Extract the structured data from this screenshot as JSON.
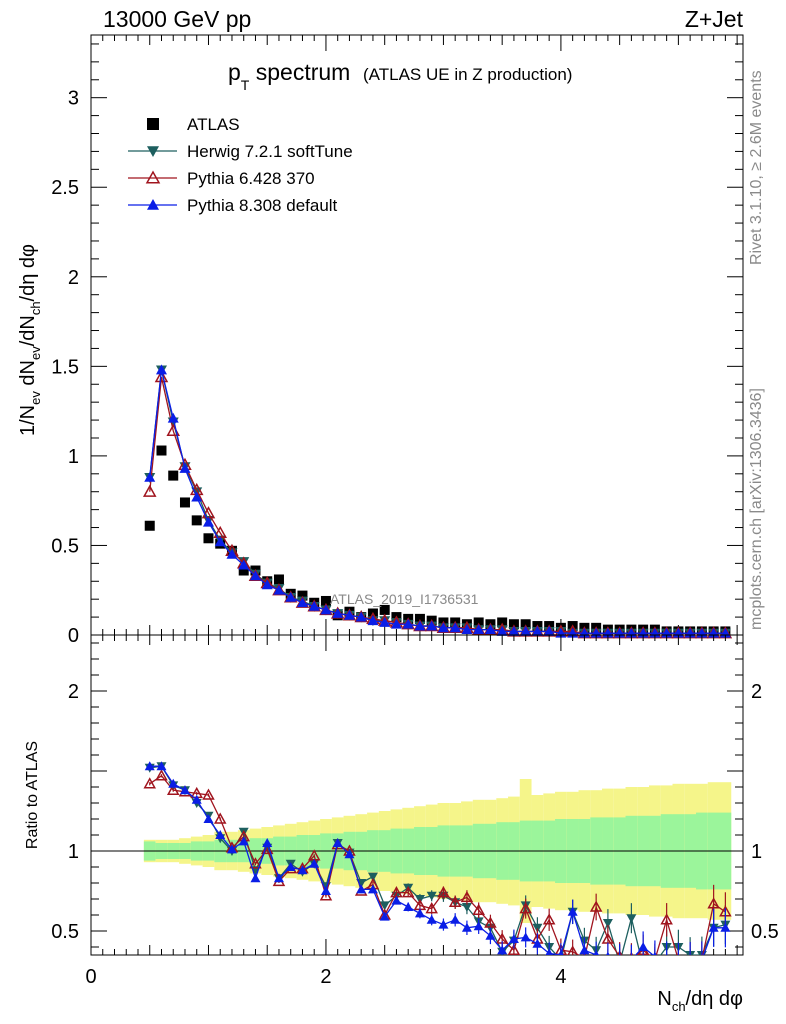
{
  "header": {
    "left": "13000 GeV pp",
    "right": "Z+Jet"
  },
  "title": {
    "main_p": "p",
    "main_sub": "T",
    "main_rest": " spectrum",
    "extra": "(ATLAS UE in Z production)"
  },
  "side_labels": {
    "rivet": "Rivet 3.1.10, ≥ 2.6M events",
    "mcplots": "mcplots.cern.ch [arXiv:1306.3436]"
  },
  "watermark": "ATLAS_2019_I1736531",
  "colors": {
    "atlas": "#000000",
    "herwig": "#1d5f5f",
    "pythia6": "#a0141e",
    "pythia8": "#0a1ee6",
    "band_stat": "#9bf59b",
    "band_tot": "#f5f58a"
  },
  "legend": [
    {
      "key": "atlas",
      "label": "ATLAS"
    },
    {
      "key": "herwig",
      "label": "Herwig 7.2.1 softTune"
    },
    {
      "key": "pythia6",
      "label": "Pythia 6.428 370"
    },
    {
      "key": "pythia8",
      "label": "Pythia 8.308 default"
    }
  ],
  "chart_data": [
    {
      "type": "scatter",
      "name": "main",
      "ylabel": "1/Nev dNev/dNch/dη dφ",
      "ylim": [
        0,
        3.35
      ],
      "xlim": [
        0,
        5.55
      ],
      "yticks": [
        "0",
        "0.5",
        "1",
        "1.5",
        "2",
        "2.5",
        "3"
      ],
      "x": [
        0.5,
        0.6,
        0.7,
        0.8,
        0.9,
        1.0,
        1.1,
        1.2,
        1.3,
        1.4,
        1.5,
        1.6,
        1.7,
        1.8,
        1.9,
        2.0,
        2.1,
        2.2,
        2.3,
        2.4,
        2.5,
        2.6,
        2.7,
        2.8,
        2.9,
        3.0,
        3.1,
        3.2,
        3.3,
        3.4,
        3.5,
        3.6,
        3.7,
        3.8,
        3.9,
        4.0,
        4.1,
        4.2,
        4.3,
        4.4,
        4.5,
        4.6,
        4.7,
        4.8,
        4.9,
        5.0,
        5.1,
        5.2,
        5.3,
        5.4
      ],
      "series": [
        {
          "key": "atlas",
          "values": [
            0.61,
            1.03,
            0.89,
            0.74,
            0.64,
            0.54,
            0.51,
            0.47,
            0.36,
            0.36,
            0.3,
            0.31,
            0.23,
            0.22,
            0.18,
            0.19,
            0.11,
            0.13,
            0.1,
            0.12,
            0.14,
            0.1,
            0.09,
            0.09,
            0.08,
            0.07,
            0.07,
            0.06,
            0.07,
            0.06,
            0.07,
            0.06,
            0.06,
            0.05,
            0.05,
            0.04,
            0.05,
            0.04,
            0.04,
            0.03,
            0.03,
            0.03,
            0.03,
            0.03,
            0.02,
            0.02,
            0.02,
            0.02,
            0.02,
            0.02
          ]
        },
        {
          "key": "herwig",
          "values": [
            0.88,
            1.48,
            1.19,
            0.94,
            0.8,
            0.64,
            0.53,
            0.46,
            0.41,
            0.34,
            0.29,
            0.26,
            0.21,
            0.19,
            0.16,
            0.14,
            0.12,
            0.11,
            0.1,
            0.08,
            0.08,
            0.07,
            0.06,
            0.05,
            0.05,
            0.04,
            0.04,
            0.04,
            0.03,
            0.03,
            0.03,
            0.02,
            0.02,
            0.02,
            0.02,
            0.02,
            0.01,
            0.01,
            0.01,
            0.01,
            0.01,
            0.01,
            0.01,
            0.01,
            0.01,
            0.01,
            0.01,
            0.01,
            0.01,
            0.01
          ]
        },
        {
          "key": "pythia6",
          "values": [
            0.8,
            1.44,
            1.14,
            0.95,
            0.81,
            0.68,
            0.57,
            0.47,
            0.4,
            0.33,
            0.29,
            0.25,
            0.21,
            0.18,
            0.16,
            0.14,
            0.12,
            0.11,
            0.1,
            0.09,
            0.08,
            0.07,
            0.06,
            0.05,
            0.05,
            0.04,
            0.04,
            0.04,
            0.03,
            0.03,
            0.03,
            0.02,
            0.02,
            0.02,
            0.02,
            0.02,
            0.02,
            0.01,
            0.01,
            0.01,
            0.01,
            0.01,
            0.01,
            0.01,
            0.01,
            0.01,
            0.01,
            0.01,
            0.01,
            0.01
          ]
        },
        {
          "key": "pythia8",
          "values": [
            0.88,
            1.48,
            1.21,
            0.93,
            0.77,
            0.63,
            0.52,
            0.45,
            0.39,
            0.33,
            0.28,
            0.25,
            0.21,
            0.18,
            0.16,
            0.14,
            0.12,
            0.11,
            0.1,
            0.08,
            0.07,
            0.06,
            0.06,
            0.05,
            0.05,
            0.04,
            0.04,
            0.03,
            0.03,
            0.03,
            0.02,
            0.02,
            0.02,
            0.02,
            0.02,
            0.01,
            0.01,
            0.01,
            0.01,
            0.01,
            0.01,
            0.01,
            0.01,
            0.01,
            0.01,
            0.01,
            0.01,
            0.01,
            0.01,
            0.01
          ]
        }
      ]
    },
    {
      "type": "scatter",
      "name": "ratio",
      "ylabel": "Ratio to ATLAS",
      "xlabel": "Nch/dη dφ",
      "ylim": [
        0.35,
        2.35
      ],
      "xlim": [
        0,
        5.55
      ],
      "xticks": [
        "0",
        "2",
        "4"
      ],
      "yticks_left": [
        "0.5",
        "1",
        "2"
      ],
      "yticks_right": [
        "0.5",
        "1",
        "2"
      ],
      "x": [
        0.5,
        0.6,
        0.7,
        0.8,
        0.9,
        1.0,
        1.1,
        1.2,
        1.3,
        1.4,
        1.5,
        1.6,
        1.7,
        1.8,
        1.9,
        2.0,
        2.1,
        2.2,
        2.3,
        2.4,
        2.5,
        2.6,
        2.7,
        2.8,
        2.9,
        3.0,
        3.1,
        3.2,
        3.3,
        3.4,
        3.5,
        3.6,
        3.7,
        3.8,
        3.9,
        4.0,
        4.1,
        4.2,
        4.3,
        4.4,
        4.5,
        4.6,
        4.7,
        4.8,
        4.9,
        5.0,
        5.1,
        5.2,
        5.3,
        5.4
      ],
      "band_stat": [
        0.06,
        0.05,
        0.05,
        0.05,
        0.06,
        0.06,
        0.07,
        0.07,
        0.07,
        0.08,
        0.08,
        0.09,
        0.09,
        0.1,
        0.1,
        0.11,
        0.11,
        0.12,
        0.12,
        0.13,
        0.13,
        0.14,
        0.14,
        0.15,
        0.15,
        0.16,
        0.16,
        0.16,
        0.17,
        0.17,
        0.18,
        0.18,
        0.19,
        0.19,
        0.19,
        0.2,
        0.2,
        0.2,
        0.21,
        0.21,
        0.21,
        0.22,
        0.22,
        0.22,
        0.23,
        0.23,
        0.23,
        0.24,
        0.24,
        0.24
      ],
      "band_tot": [
        0.07,
        0.07,
        0.07,
        0.08,
        0.09,
        0.1,
        0.12,
        0.12,
        0.13,
        0.14,
        0.15,
        0.16,
        0.17,
        0.18,
        0.19,
        0.2,
        0.21,
        0.22,
        0.23,
        0.24,
        0.25,
        0.26,
        0.27,
        0.28,
        0.29,
        0.3,
        0.3,
        0.31,
        0.32,
        0.32,
        0.33,
        0.34,
        0.45,
        0.35,
        0.36,
        0.37,
        0.37,
        0.38,
        0.38,
        0.39,
        0.39,
        0.4,
        0.4,
        0.41,
        0.41,
        0.42,
        0.42,
        0.42,
        0.43,
        0.43
      ],
      "series": [
        {
          "key": "herwig",
          "values": [
            1.52,
            1.53,
            1.41,
            1.38,
            1.3,
            1.22,
            1.08,
            1.0,
            1.12,
            0.88,
            1.02,
            0.83,
            0.92,
            0.87,
            0.92,
            0.78,
            1.05,
            0.99,
            0.8,
            0.84,
            0.66,
            0.72,
            0.77,
            0.7,
            0.72,
            0.72,
            0.68,
            0.65,
            0.56,
            0.52,
            0.37,
            0.44,
            0.66,
            0.52,
            0.4,
            0.32,
            0.62,
            0.44,
            0.38,
            0.55,
            0.3,
            0.58,
            0.28,
            0.3,
            0.4,
            0.4,
            0.35,
            0.35,
            0.52,
            0.54
          ]
        },
        {
          "key": "pythia6",
          "values": [
            1.42,
            1.47,
            1.38,
            1.37,
            1.36,
            1.35,
            1.2,
            1.02,
            1.09,
            0.92,
            1.01,
            0.81,
            0.89,
            0.89,
            0.97,
            0.72,
            1.04,
            1.0,
            0.75,
            0.79,
            0.6,
            0.74,
            0.74,
            0.66,
            0.64,
            0.74,
            0.68,
            0.71,
            0.63,
            0.55,
            0.45,
            0.38,
            0.64,
            0.45,
            0.57,
            0.38,
            0.37,
            0.33,
            0.65,
            0.45,
            0.34,
            0.33,
            0.38,
            0.32,
            0.57,
            0.32,
            0.32,
            0.32,
            0.67,
            0.62
          ]
        },
        {
          "key": "pythia8",
          "values": [
            1.53,
            1.53,
            1.42,
            1.38,
            1.32,
            1.2,
            1.1,
            1.01,
            1.06,
            0.83,
            1.05,
            0.83,
            0.9,
            0.88,
            0.92,
            0.75,
            1.05,
            0.98,
            0.76,
            0.76,
            0.59,
            0.69,
            0.65,
            0.61,
            0.57,
            0.54,
            0.57,
            0.52,
            0.53,
            0.47,
            0.38,
            0.45,
            0.46,
            0.42,
            0.36,
            0.35,
            0.62,
            0.38,
            0.35,
            0.34,
            0.33,
            0.32,
            0.4,
            0.34,
            0.33,
            0.32,
            0.32,
            0.32,
            0.52,
            0.52
          ]
        }
      ]
    }
  ]
}
